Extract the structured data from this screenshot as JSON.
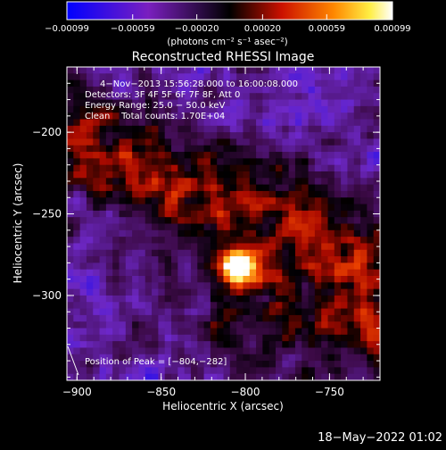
{
  "chart_data": {
    "type": "heatmap",
    "title": "Reconstructed RHESSI Image",
    "xlabel": "Heliocentric X (arcsec)",
    "ylabel": "Heliocentric Y (arcsec)",
    "xlim": [
      -906,
      -720
    ],
    "ylim": [
      -352,
      -160
    ],
    "x_ticks": [
      -900,
      -850,
      -800,
      -750
    ],
    "x_tick_labels": [
      "−900",
      "−850",
      "−800",
      "−750"
    ],
    "y_ticks": [
      -200,
      -250,
      -300
    ],
    "y_tick_labels": [
      "−200",
      "−250",
      "−300"
    ],
    "colorbar": {
      "range": [
        -0.00099,
        0.00099
      ],
      "ticks": [
        -0.00099,
        -0.00059,
        -0.0002,
        0.0002,
        0.00059,
        0.00099
      ],
      "tick_labels": [
        "−0.00099",
        "−0.00059",
        "−0.00020",
        "0.00020",
        "0.00059",
        "0.00099"
      ],
      "unit_label": "(photons cm⁻² s⁻¹ asec⁻²)",
      "colormap": "blue-purple-black-red-orange-yellow-white"
    },
    "annotations": [
      "4−Nov−2013 15:56:28.000 to 16:00:08.000",
      "Detectors: 3F 4F 5F 6F 7F 8F, Att 0",
      "Energy Range: 25.0 − 50.0 keV",
      "Clean    Total counts: 1.70E+04"
    ],
    "peak_label": "Position of Peak = [−804,−282]",
    "peak": {
      "x": -804,
      "y": -282
    },
    "grid": false,
    "legend": "none"
  },
  "footer": {
    "date": "18−May−2022 01:02"
  },
  "colors": {
    "background": "#000000",
    "text": "#ffffff"
  }
}
